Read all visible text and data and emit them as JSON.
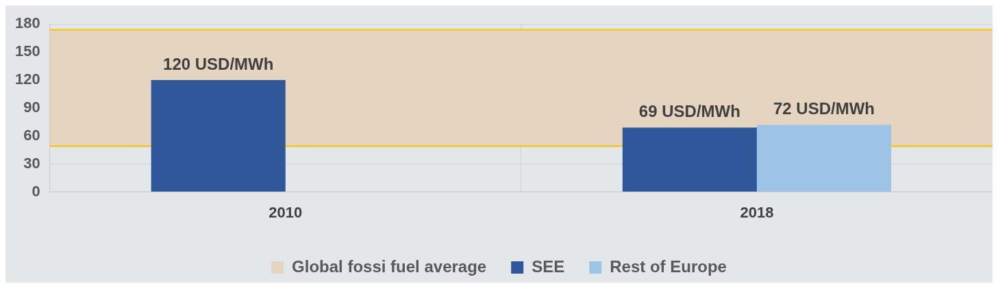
{
  "chart_data": {
    "type": "bar",
    "categories": [
      "2010",
      "2018"
    ],
    "series": [
      {
        "name": "SEE",
        "color": "#30579a",
        "values": [
          120,
          69
        ],
        "value_labels": [
          "120 USD/MWh",
          "69 USD/MWh"
        ]
      },
      {
        "name": "Rest of Europe",
        "color": "#9dc3e6",
        "values": [
          null,
          72
        ],
        "value_labels": [
          null,
          "72 USD/MWh"
        ]
      }
    ],
    "ylim": [
      0,
      180
    ],
    "yticks": [
      0,
      30,
      60,
      90,
      120,
      150,
      180
    ],
    "grid": true,
    "legend": "bottom",
    "bands": [
      {
        "axis": "y",
        "from": 49,
        "to": 174,
        "label": "Global fossi fuel average",
        "color": "#e4d4c0"
      }
    ],
    "ref_lines": [
      {
        "axis": "y",
        "value": 49,
        "color": "#ffc000"
      },
      {
        "axis": "y",
        "value": 174,
        "color": "#ffc000"
      }
    ]
  }
}
